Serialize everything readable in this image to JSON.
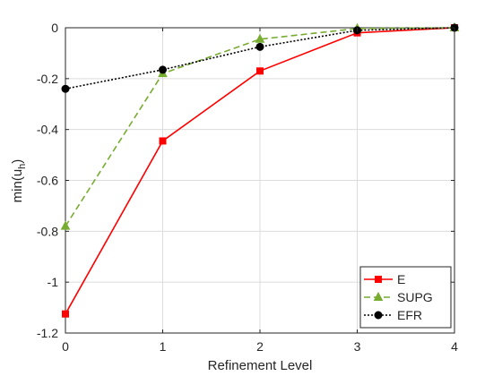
{
  "chart_data": {
    "type": "line",
    "xlabel": "Refinement Level",
    "ylabel": "min(u",
    "ylabel_subscript": "h",
    "ylabel_suffix": ")",
    "x": [
      0,
      1,
      2,
      3,
      4
    ],
    "xlim": [
      0,
      4
    ],
    "ylim": [
      -1.2,
      0
    ],
    "xticks": [
      0,
      1,
      2,
      3,
      4
    ],
    "xtick_labels": [
      "0",
      "1",
      "2",
      "3",
      "4"
    ],
    "yticks": [
      -1.2,
      -1,
      -0.8,
      -0.6,
      -0.4,
      -0.2,
      0
    ],
    "ytick_labels": [
      "-1.2",
      "-1",
      "-0.8",
      "-0.6",
      "-0.4",
      "-0.2",
      "0"
    ],
    "grid": true,
    "legend_position": "bottom-right",
    "series": [
      {
        "name": "E",
        "values": [
          -1.125,
          -0.445,
          -0.17,
          -0.02,
          0.0
        ],
        "color": "#ff0000",
        "line_style": "solid",
        "marker": "square"
      },
      {
        "name": "SUPG",
        "values": [
          -0.78,
          -0.18,
          -0.045,
          -0.003,
          0.0
        ],
        "color": "#77ac30",
        "line_style": "dashed",
        "marker": "triangle"
      },
      {
        "name": "EFR",
        "values": [
          -0.24,
          -0.165,
          -0.075,
          -0.01,
          0.0
        ],
        "color": "#000000",
        "line_style": "dotted",
        "marker": "circle"
      }
    ]
  }
}
